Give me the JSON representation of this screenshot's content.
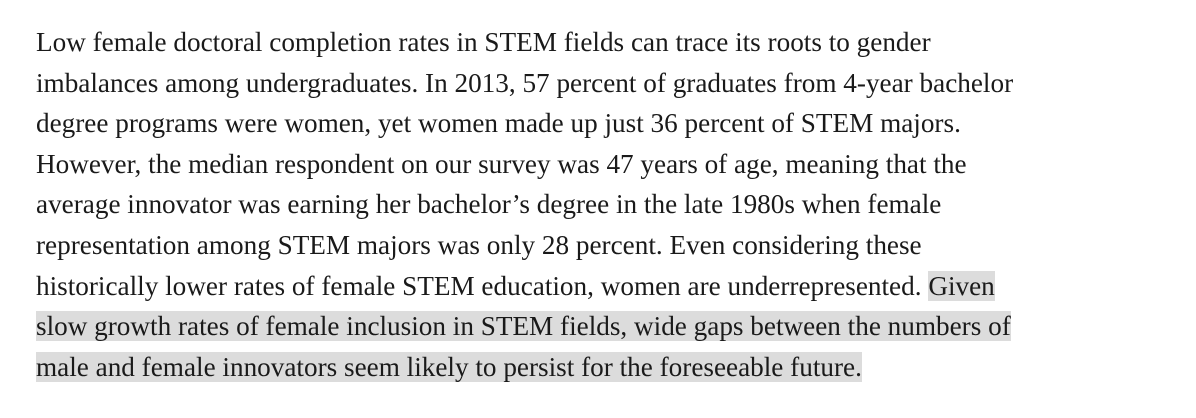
{
  "paragraph": {
    "lines": [
      "Low female doctoral completion rates in STEM fields can trace its roots to gender",
      "imbalances among undergraduates. In 2013, 57 percent of graduates from 4-year bachelor",
      "degree programs were women, yet women made up just 36 percent of STEM majors.",
      "However, the median respondent on our survey was 47 years of age, meaning that the",
      "average innovator was earning her bachelor’s degree in the late 1980s when female",
      "representation among STEM majors was only 28 percent. Even considering these",
      "historically lower rates of female STEM education, women are underrepresented. ",
      "slow growth rates of female inclusion in STEM fields, wide gaps between the numbers of",
      "male and female innovators seem likely to persist for the foreseeable future."
    ],
    "highlight_start": "Given",
    "highlight_color": "#dcdcdc"
  }
}
